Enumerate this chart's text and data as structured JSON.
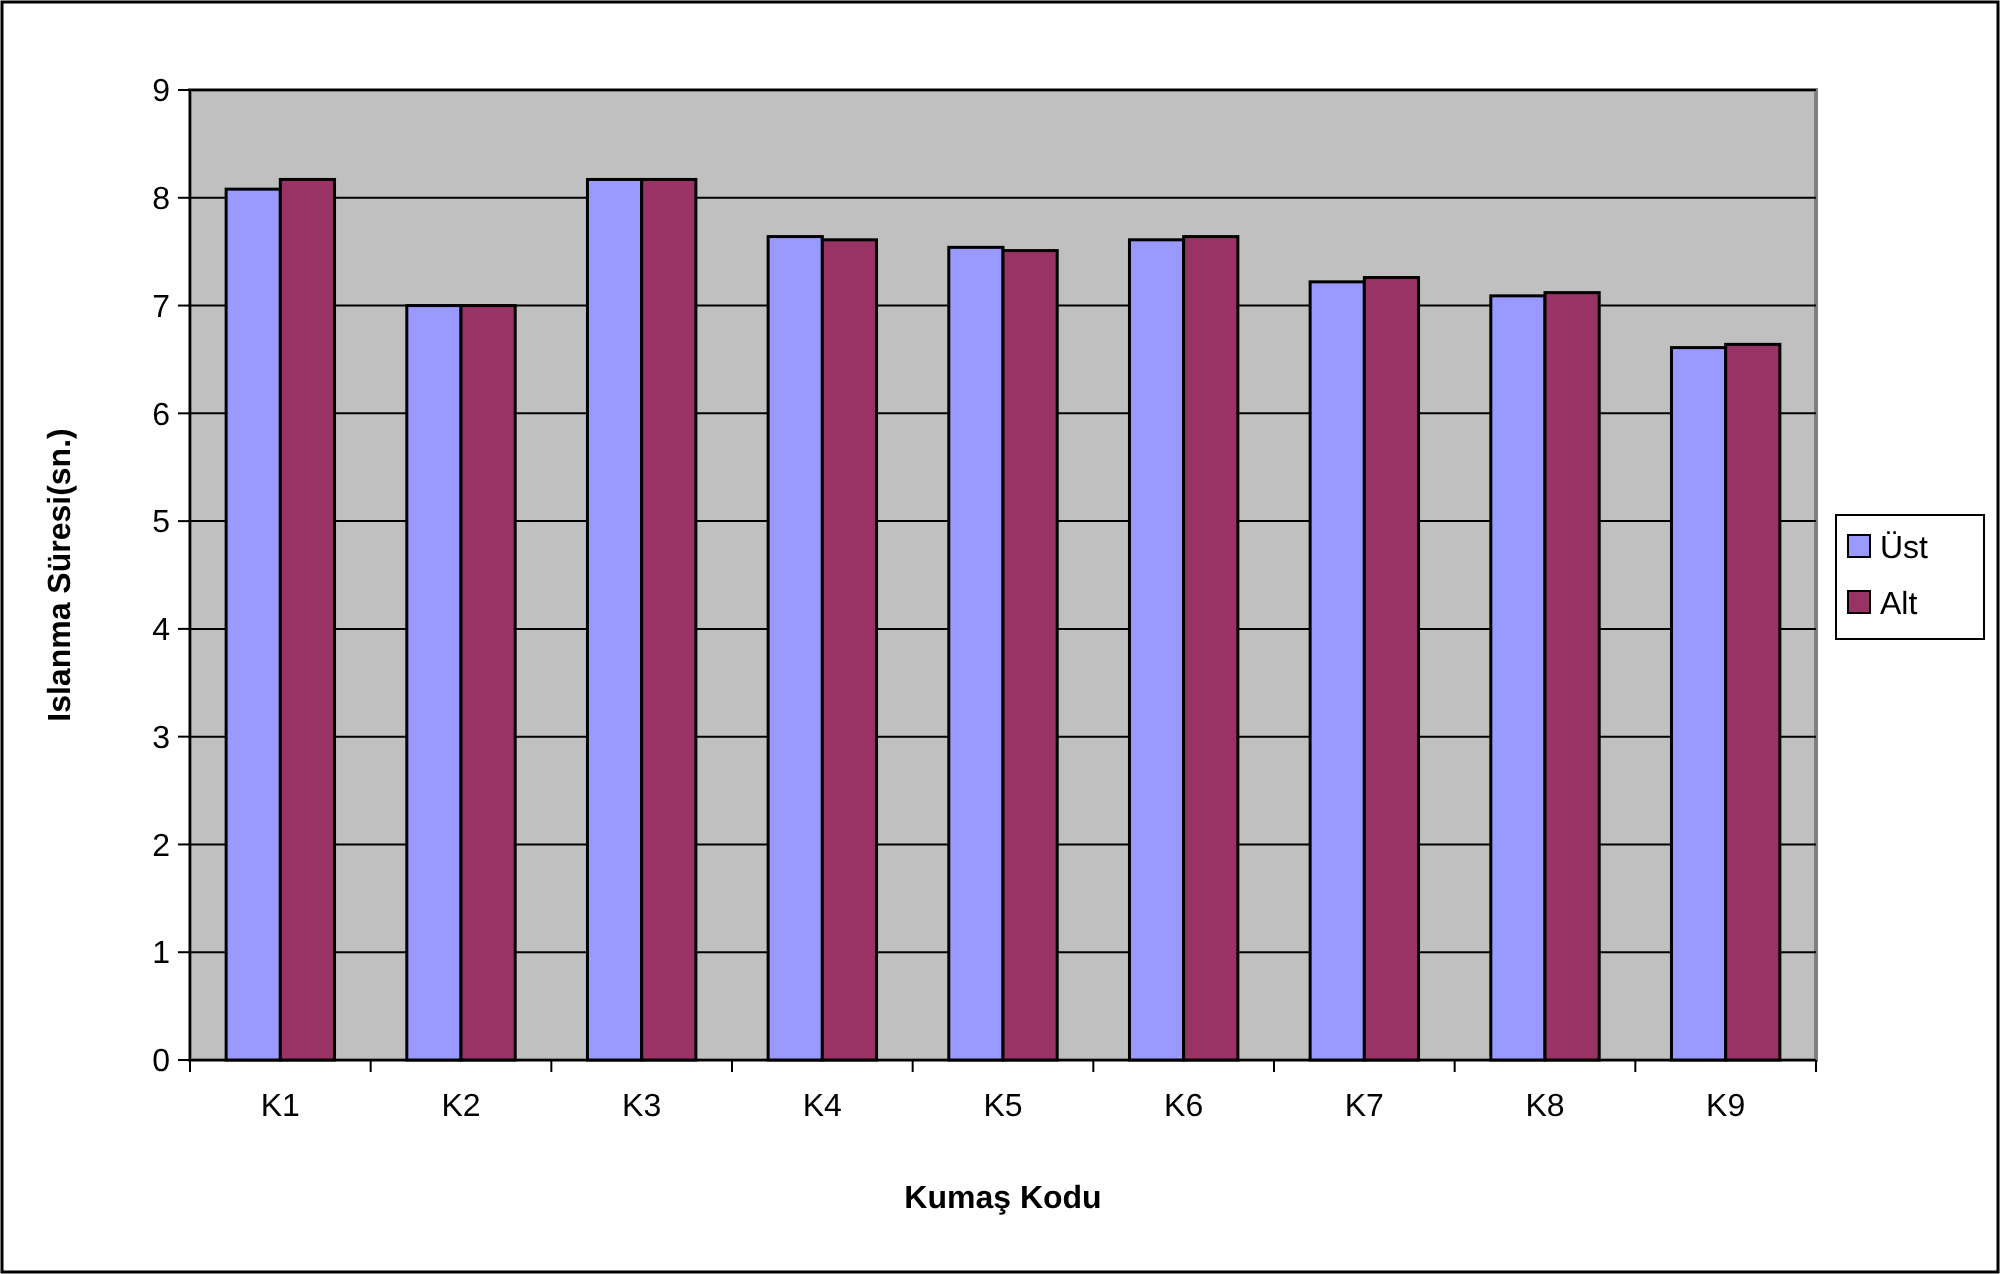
{
  "chart_data": {
    "type": "bar",
    "xlabel": "Kumaş Kodu",
    "ylabel": "Islanma Süresi(sn.)",
    "categories": [
      "K1",
      "K2",
      "K3",
      "K4",
      "K5",
      "K6",
      "K7",
      "K8",
      "K9"
    ],
    "series": [
      {
        "name": "Üst",
        "color": "#9999ff",
        "values": [
          8.08,
          7.0,
          8.17,
          7.64,
          7.54,
          7.61,
          7.22,
          7.09,
          6.61
        ]
      },
      {
        "name": "Alt",
        "color": "#993366",
        "values": [
          8.17,
          7.0,
          8.17,
          7.61,
          7.51,
          7.64,
          7.26,
          7.12,
          6.64
        ]
      }
    ],
    "ylim": [
      0,
      9
    ],
    "yticks": [
      0,
      1,
      2,
      3,
      4,
      5,
      6,
      7,
      8,
      9
    ],
    "grid": "y",
    "legend": "right"
  }
}
